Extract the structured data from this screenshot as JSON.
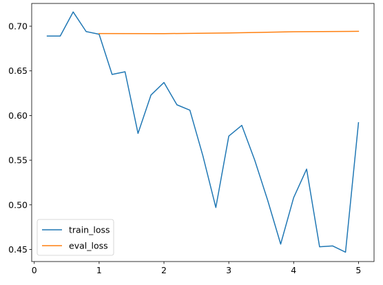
{
  "chart_data": {
    "type": "line",
    "title": "",
    "xlabel": "",
    "ylabel": "",
    "xlim": [
      -0.04,
      5.24
    ],
    "ylim": [
      0.4365,
      0.7255
    ],
    "xticks": [
      0,
      1,
      2,
      3,
      4,
      5
    ],
    "xtick_labels": [
      "0",
      "1",
      "2",
      "3",
      "4",
      "5"
    ],
    "yticks": [
      0.45,
      0.5,
      0.55,
      0.6,
      0.65,
      0.7
    ],
    "ytick_labels": [
      "0.45",
      "0.50",
      "0.55",
      "0.60",
      "0.65",
      "0.70"
    ],
    "grid": false,
    "legend": "lower-left",
    "series": [
      {
        "name": "train_loss",
        "color": "#1f77b4",
        "x": [
          0.2,
          0.4,
          0.6,
          0.8,
          1.0,
          1.2,
          1.4,
          1.6,
          1.8,
          2.0,
          2.2,
          2.4,
          2.6,
          2.8,
          3.0,
          3.2,
          3.4,
          3.6,
          3.8,
          4.0,
          4.2,
          4.4,
          4.6,
          4.8,
          5.0
        ],
        "y": [
          0.689,
          0.689,
          0.716,
          0.694,
          0.691,
          0.646,
          0.649,
          0.58,
          0.623,
          0.637,
          0.612,
          0.606,
          0.555,
          0.497,
          0.577,
          0.589,
          0.55,
          0.505,
          0.456,
          0.508,
          0.54,
          0.453,
          0.454,
          0.447,
          0.592
        ]
      },
      {
        "name": "eval_loss",
        "color": "#ff7f0e",
        "x": [
          1.0,
          2.0,
          3.0,
          4.0,
          5.0
        ],
        "y": [
          0.6918,
          0.6917,
          0.6925,
          0.6938,
          0.6943
        ]
      }
    ]
  }
}
